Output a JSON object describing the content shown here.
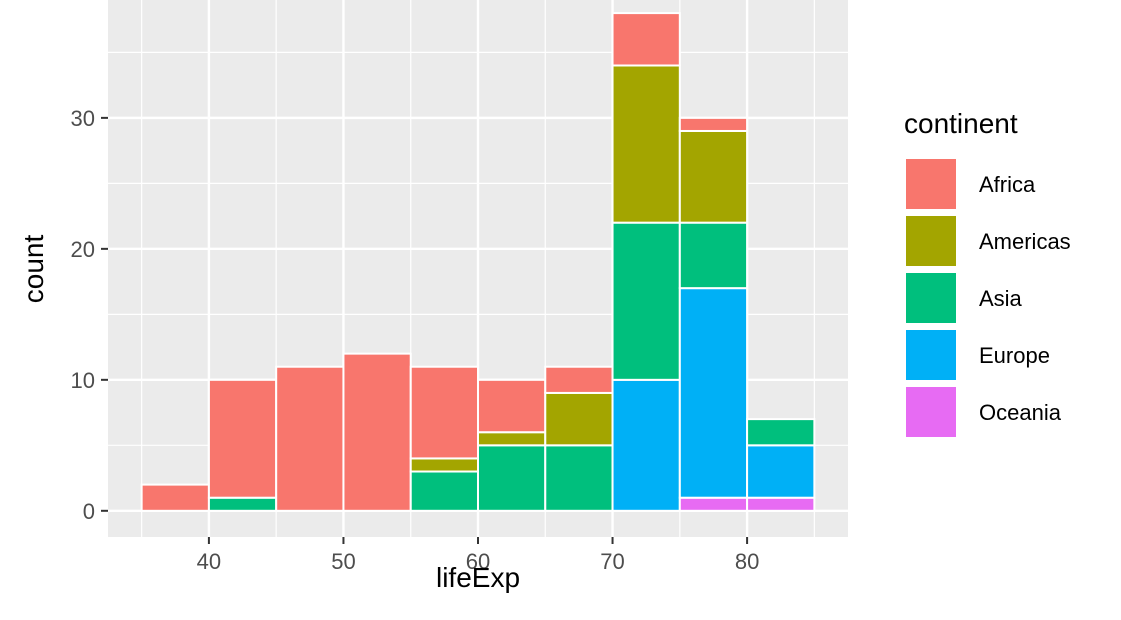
{
  "chart_data": {
    "type": "bar",
    "stacked": true,
    "histogram": true,
    "title": "",
    "xlabel": "lifeExp",
    "ylabel": "count",
    "xlim": [
      32.5,
      87.5
    ],
    "ylim": [
      -2,
      39
    ],
    "x_ticks": [
      40,
      50,
      60,
      70,
      80
    ],
    "y_ticks": [
      0,
      10,
      20,
      30
    ],
    "grid": true,
    "legend_title": "continent",
    "legend_position": "right",
    "bins": [
      {
        "from": 35,
        "to": 40
      },
      {
        "from": 40,
        "to": 45
      },
      {
        "from": 45,
        "to": 50
      },
      {
        "from": 50,
        "to": 55
      },
      {
        "from": 55,
        "to": 60
      },
      {
        "from": 60,
        "to": 65
      },
      {
        "from": 65,
        "to": 70
      },
      {
        "from": 70,
        "to": 75
      },
      {
        "from": 75,
        "to": 80
      },
      {
        "from": 80,
        "to": 85
      }
    ],
    "series": [
      {
        "name": "Africa",
        "color": "#F8766D",
        "values": [
          2,
          9,
          11,
          12,
          7,
          4,
          2,
          4,
          1,
          0
        ]
      },
      {
        "name": "Americas",
        "color": "#A3A500",
        "values": [
          0,
          0,
          0,
          0,
          1,
          1,
          4,
          12,
          7,
          0
        ]
      },
      {
        "name": "Asia",
        "color": "#00BF7D",
        "values": [
          0,
          1,
          0,
          0,
          3,
          5,
          5,
          12,
          5,
          2
        ]
      },
      {
        "name": "Europe",
        "color": "#00B0F6",
        "values": [
          0,
          0,
          0,
          0,
          0,
          0,
          0,
          10,
          16,
          4
        ]
      },
      {
        "name": "Oceania",
        "color": "#E76BF3",
        "values": [
          0,
          0,
          0,
          0,
          0,
          0,
          0,
          0,
          1,
          1
        ]
      }
    ],
    "panel_background": "#EBEBEB",
    "grid_color": "#FFFFFF"
  }
}
